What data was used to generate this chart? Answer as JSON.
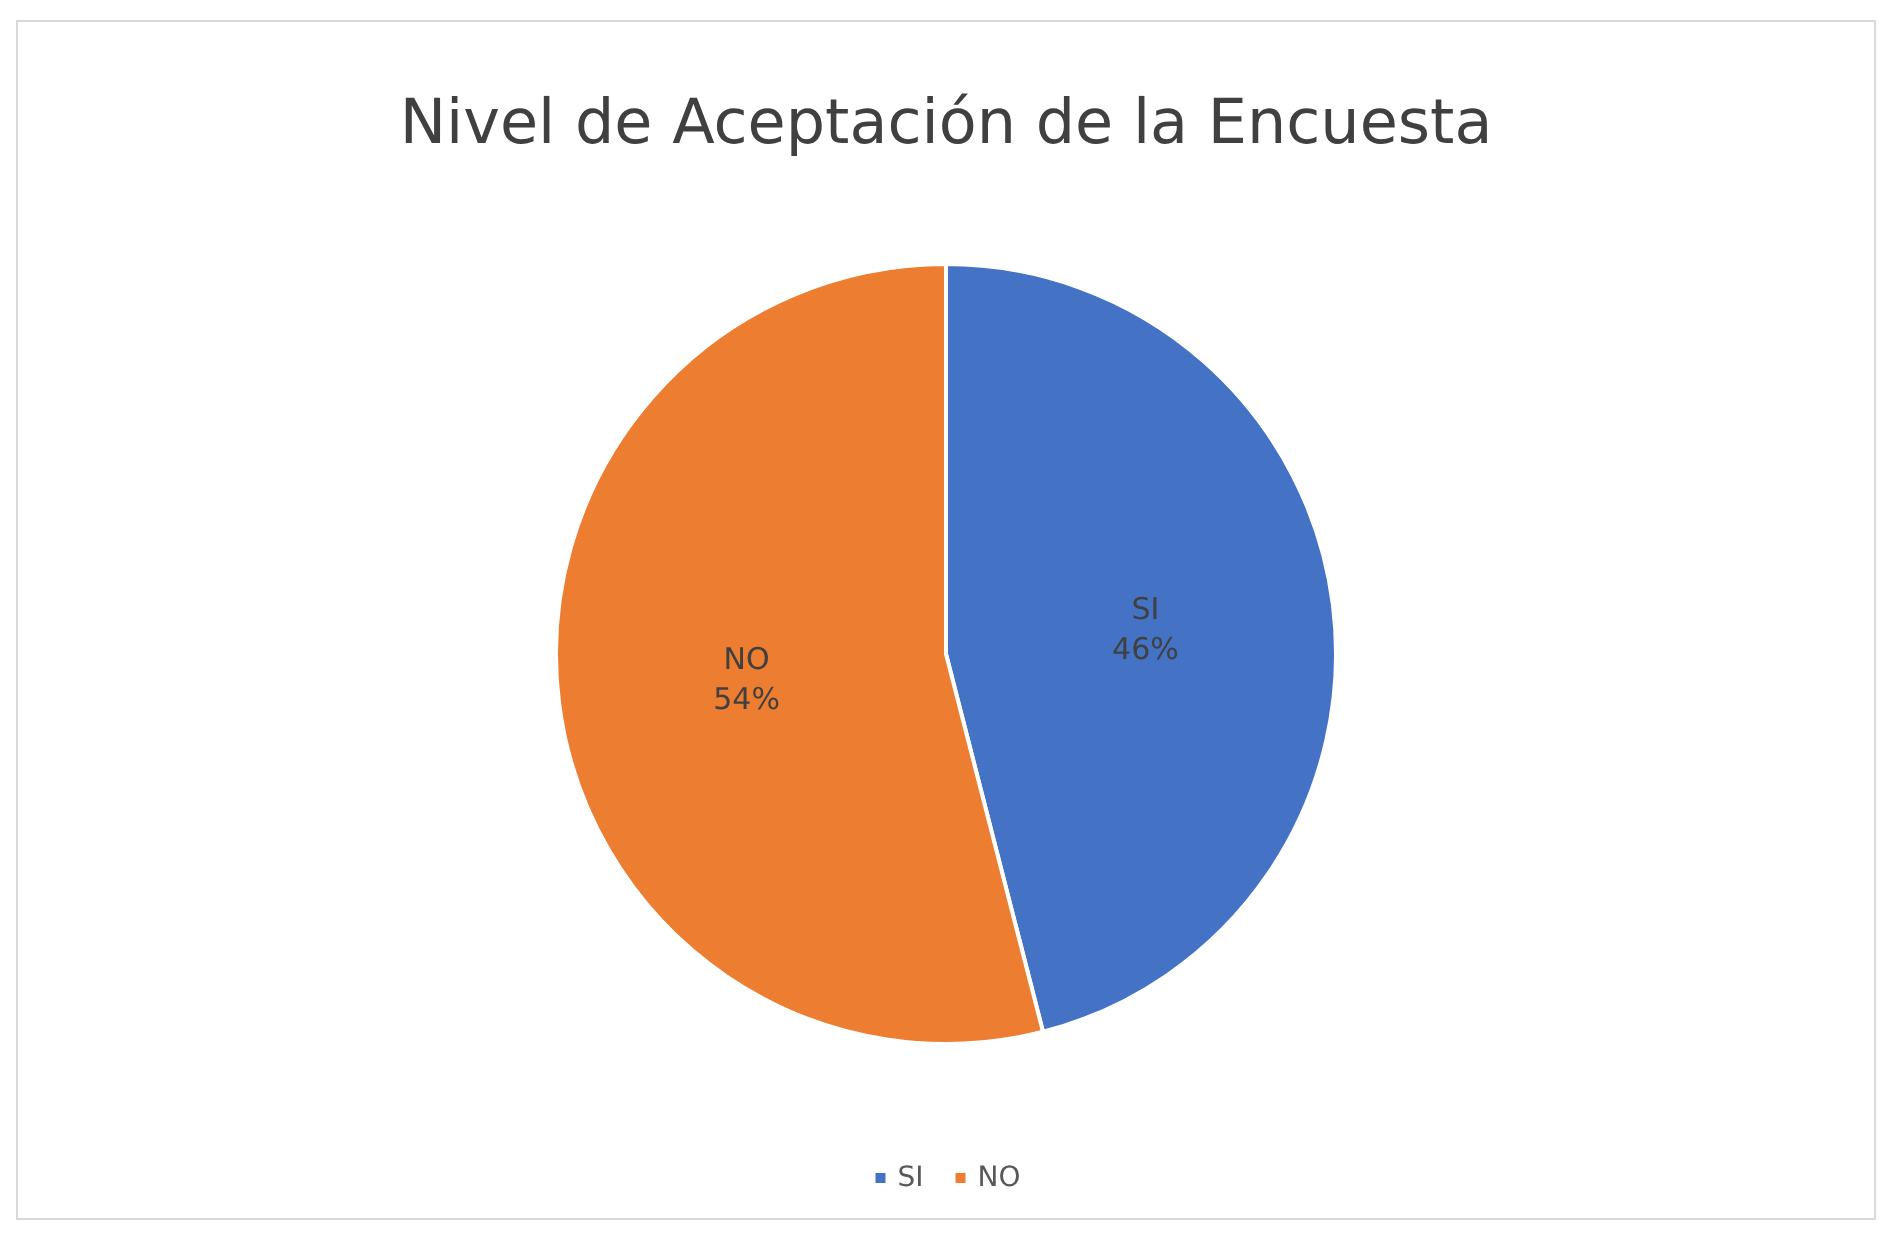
{
  "chart_data": {
    "type": "pie",
    "title": "Nivel de Aceptación de la Encuesta",
    "categories": [
      "SI",
      "NO"
    ],
    "values": [
      46,
      54
    ],
    "colors": [
      "#4472c4",
      "#ed7d31"
    ],
    "value_labels": [
      "46%",
      "54%"
    ],
    "legend": "bottom"
  }
}
